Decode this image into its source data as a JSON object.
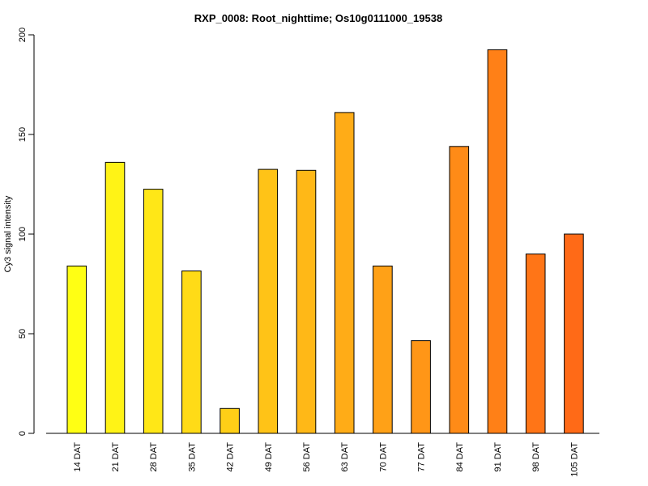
{
  "chart_data": {
    "type": "bar",
    "title": "RXP_0008: Root_nighttime; Os10g0111000_19538",
    "xlabel": "",
    "ylabel": "Cy3 signal intensity",
    "ylim": [
      0,
      200
    ],
    "yticks": [
      0,
      50,
      100,
      150,
      200
    ],
    "grid": false,
    "legend": "none",
    "categories": [
      "14 DAT",
      "21 DAT",
      "28 DAT",
      "35 DAT",
      "42 DAT",
      "49 DAT",
      "56 DAT",
      "63 DAT",
      "70 DAT",
      "77 DAT",
      "84 DAT",
      "91 DAT",
      "98 DAT",
      "105 DAT"
    ],
    "values": [
      84,
      136,
      122.5,
      81.5,
      12.5,
      132.5,
      132,
      161,
      84,
      46.5,
      144,
      192.5,
      90,
      100
    ],
    "colors": [
      "#ffff14",
      "#fff316",
      "#ffe717",
      "#ffdb17",
      "#ffcf17",
      "#ffc317",
      "#ffb817",
      "#ffac17",
      "#ffa117",
      "#ff9617",
      "#ff8b17",
      "#ff8017",
      "#ff7517",
      "#ff6a17"
    ]
  }
}
